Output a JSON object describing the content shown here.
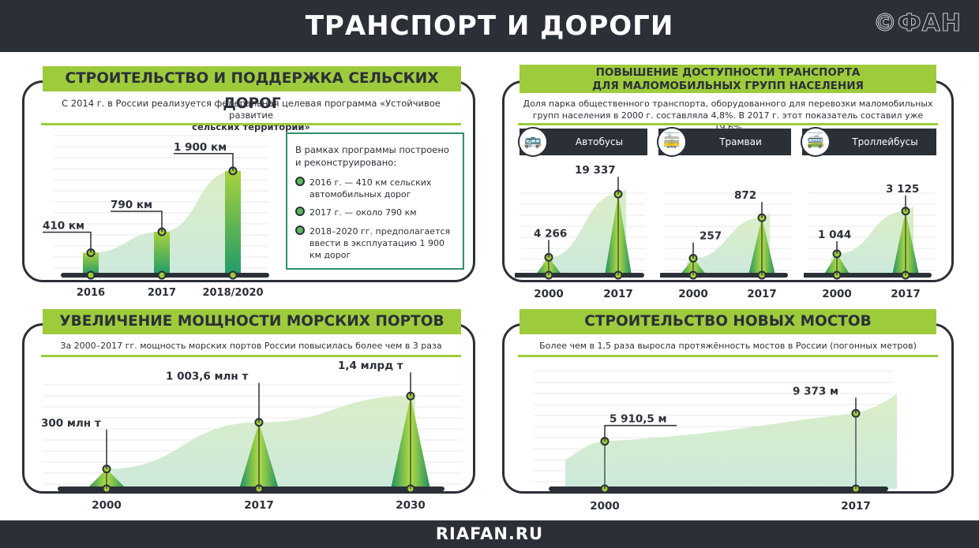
{
  "header": {
    "title": "ТРАНСПОРТ И ДОРОГИ",
    "logo": "©ФАН"
  },
  "footer": {
    "text": "RIAFAN.RU"
  },
  "roads": {
    "title": "СТРОИТЕЛЬСТВО И ПОДДЕРЖКА СЕЛЬСКИХ ДОРОГ",
    "subtitle_line1": "С 2014 г. в России реализуется федеральная целевая программа «Устойчивое развитие",
    "subtitle_line2": "сельских территорий»",
    "box": {
      "intro": "В рамках программы построено и реконструировано:",
      "items": [
        "2016 г. — 410 км сельских автомобильных дорог",
        "2017 г. — около 790 км",
        "2018–2020 гг. предполагается ввести в эксплуатацию 1 900 км дорог"
      ]
    }
  },
  "access": {
    "title_line1": "ПОВЫШЕНИЕ ДОСТУПНОСТИ ТРАНСПОРТА",
    "title_line2": "ДЛЯ МАЛОМОБИЛЬНЫХ ГРУПП НАСЕЛЕНИЯ",
    "subtitle_line1": "Доля парка общественного транспорта, оборудованного для перевозки маломобильных",
    "subtitle_line2": "групп населения в 2000 г. составляла 4,8%. В 2017 г. этот показатель составил уже 19,6%",
    "tabs": [
      {
        "label": "Автобусы",
        "icon": "bus-icon",
        "glyph": "🚌"
      },
      {
        "label": "Трамваи",
        "icon": "tram-icon",
        "glyph": "🚋"
      },
      {
        "label": "Троллейбусы",
        "icon": "trolleybus-icon",
        "glyph": "🚎"
      }
    ]
  },
  "ports": {
    "title": "УВЕЛИЧЕНИЕ МОЩНОСТИ МОРСКИХ ПОРТОВ",
    "subtitle": "За 2000–2017 гг. мощность морских портов России повысилась более чем в 3 раза"
  },
  "bridges": {
    "title": "СТРОИТЕЛЬСТВО НОВЫХ МОСТОВ",
    "subtitle": "Более чем в 1,5 раза выросла протяжённость мостов в России (погонных метров)"
  },
  "colors": {
    "dark": "#2b3038",
    "green": "#9ecb3c",
    "accent": "#2e8f6b"
  },
  "chart_data": [
    {
      "id": "roads",
      "type": "bar",
      "categories": [
        "2016",
        "2017",
        "2018/2020"
      ],
      "values": [
        410,
        790,
        1900
      ],
      "labels": [
        "410 км",
        "790 км",
        "1 900 км"
      ],
      "ylim": [
        0,
        2500
      ]
    },
    {
      "id": "buses",
      "type": "area",
      "categories": [
        "2000",
        "2017"
      ],
      "values": [
        4266,
        19337
      ],
      "labels": [
        "4 266",
        "19 337"
      ],
      "ylim": [
        0,
        22000
      ]
    },
    {
      "id": "trams",
      "type": "area",
      "categories": [
        "2000",
        "2017"
      ],
      "values": [
        257,
        872
      ],
      "labels": [
        "257",
        "872"
      ],
      "ylim": [
        0,
        1400
      ]
    },
    {
      "id": "trolleybuses",
      "type": "area",
      "categories": [
        "2000",
        "2017"
      ],
      "values": [
        1044,
        3125
      ],
      "labels": [
        "1 044",
        "3 125"
      ],
      "ylim": [
        0,
        4500
      ]
    },
    {
      "id": "ports",
      "type": "area",
      "categories": [
        "2000",
        "2017",
        "2030"
      ],
      "values": [
        300,
        1003.6,
        1400
      ],
      "labels": [
        "300 млн т",
        "1 003,6 млн т",
        "1,4 млрд т"
      ],
      "ylim": [
        0,
        1700
      ]
    },
    {
      "id": "bridges",
      "type": "area",
      "categories": [
        "2000",
        "2017"
      ],
      "values": [
        5910.5,
        9373
      ],
      "labels": [
        "5 910,5 м",
        "9 373 м"
      ],
      "ylim": [
        0,
        14000
      ]
    }
  ]
}
